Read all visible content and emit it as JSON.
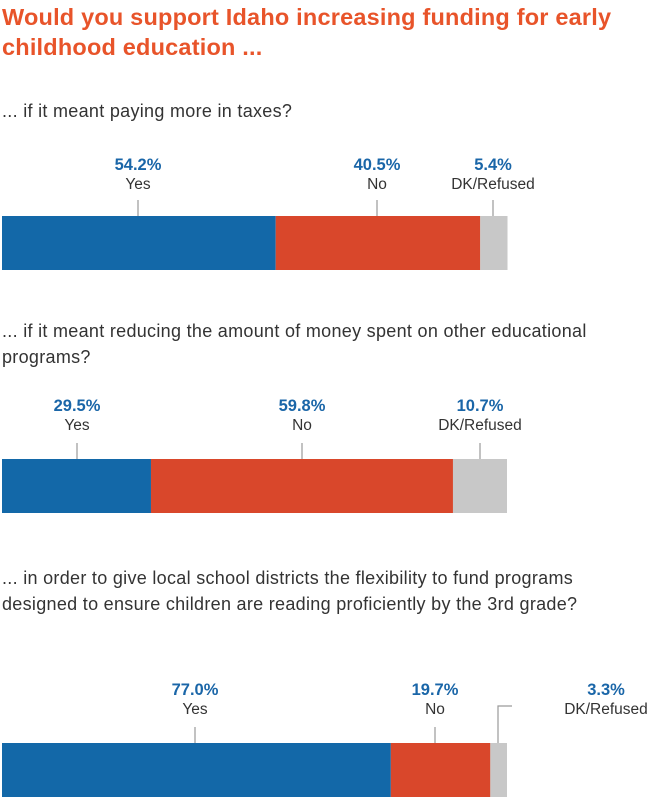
{
  "title": "Would you support Idaho increasing funding for early childhood education ...",
  "colors": {
    "yes": "#1368a8",
    "no": "#d9472b",
    "dk": "#c8c8c8",
    "pct_text": "#1a66a8",
    "label_text": "#333333",
    "leader": "#9a9a9a",
    "title": "#e8542a"
  },
  "chart_data": [
    {
      "type": "bar",
      "orientation": "horizontal-stacked",
      "title": "... if it meant paying more in taxes?",
      "categories": [
        "Yes",
        "No",
        "DK/Refused"
      ],
      "values": [
        54.2,
        40.5,
        5.4
      ],
      "value_labels": [
        "54.2%",
        "40.5%",
        "5.4%"
      ],
      "xlim": [
        0,
        100
      ]
    },
    {
      "type": "bar",
      "orientation": "horizontal-stacked",
      "title": "... if it meant reducing the amount of money spent on other educational programs?",
      "categories": [
        "Yes",
        "No",
        "DK/Refused"
      ],
      "values": [
        29.5,
        59.8,
        10.7
      ],
      "value_labels": [
        "29.5%",
        "59.8%",
        "10.7%"
      ],
      "xlim": [
        0,
        100
      ]
    },
    {
      "type": "bar",
      "orientation": "horizontal-stacked",
      "title": "... in order to give local school districts the flexibility to fund programs designed to ensure children are reading proficiently by the 3rd grade?",
      "categories": [
        "Yes",
        "No",
        "DK/Refused"
      ],
      "values": [
        77.0,
        19.7,
        3.3
      ],
      "value_labels": [
        "77.0%",
        "19.7%",
        "3.3%"
      ],
      "xlim": [
        0,
        100
      ]
    }
  ]
}
